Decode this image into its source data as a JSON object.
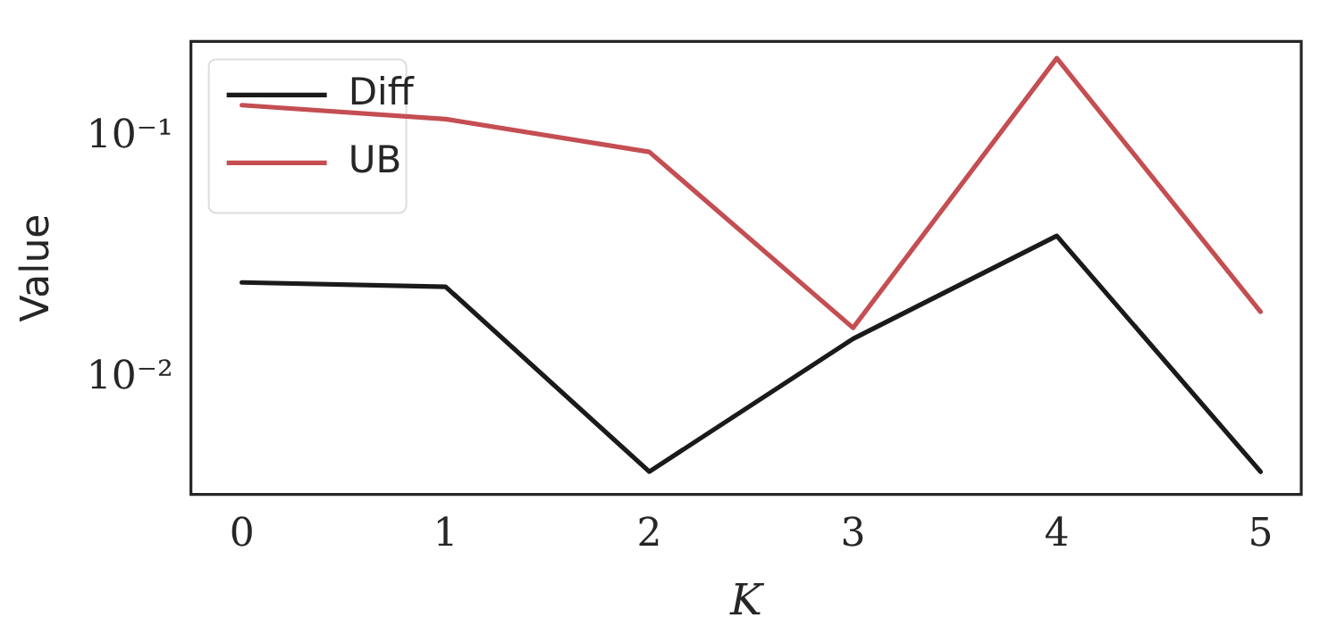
{
  "chart_data": {
    "type": "line",
    "xlabel": "K",
    "ylabel": "Value",
    "x": [
      0,
      1,
      2,
      3,
      4,
      5
    ],
    "series": [
      {
        "name": "Diff",
        "color": "#1a1a1a",
        "values": [
          0.025,
          0.024,
          0.0041,
          0.0146,
          0.039,
          0.0041
        ]
      },
      {
        "name": "UB",
        "color": "#c44e52",
        "values": [
          0.136,
          0.119,
          0.087,
          0.0162,
          0.213,
          0.0189
        ]
      }
    ],
    "xlim": [
      -0.25,
      5.2
    ],
    "xticks": [
      0,
      1,
      2,
      3,
      4,
      5
    ],
    "ylim": [
      0.0033,
      0.25
    ],
    "yticks": [
      {
        "value": 0.01,
        "label": "10⁻²"
      },
      {
        "value": 0.1,
        "label": "10⁻¹"
      }
    ],
    "log": "y",
    "grid": false,
    "legend": "top left",
    "marker": "none",
    "line_style": "solid"
  }
}
